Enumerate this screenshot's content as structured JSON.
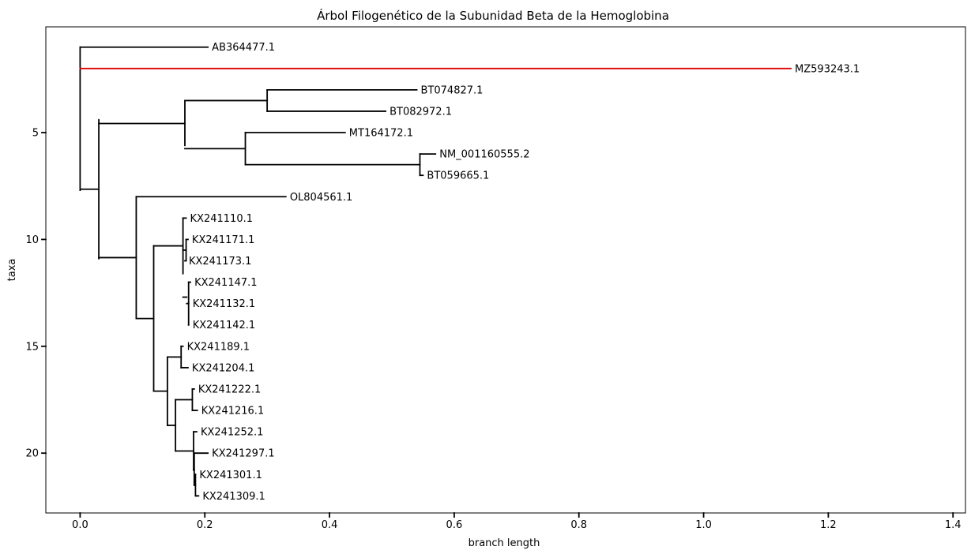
{
  "chart_data": {
    "type": "dendrogram",
    "title": "Árbol Filogenético de la Subunidad Beta de la Hemoglobina",
    "xlabel": "branch length",
    "ylabel": "taxa",
    "xlim": [
      -0.055,
      1.42
    ],
    "ylim": [
      22.8,
      0.05
    ],
    "xticks": [
      0.0,
      0.2,
      0.4,
      0.6,
      0.8,
      1.0,
      1.2,
      1.4
    ],
    "xtick_labels": [
      "0.0",
      "0.2",
      "0.4",
      "0.6",
      "0.8",
      "1.0",
      "1.2",
      "1.4"
    ],
    "yticks": [
      5,
      10,
      15,
      20
    ],
    "ytick_labels": [
      "5",
      "10",
      "15",
      "20"
    ],
    "grid": false,
    "highlight_color": "#e00000",
    "line_color": "#000000",
    "leaves": [
      {
        "label": "AB364477.1",
        "y": 1,
        "x": 0.205,
        "parent_x": 0.0
      },
      {
        "label": "MZ593243.1",
        "y": 2,
        "x": 1.14,
        "parent_x": 0.0,
        "highlight": true
      },
      {
        "label": "BT074827.1",
        "y": 3,
        "x": 0.54,
        "parent_x": 0.3
      },
      {
        "label": "BT082972.1",
        "y": 4,
        "x": 0.49,
        "parent_x": 0.3
      },
      {
        "label": "MT164172.1",
        "y": 5,
        "x": 0.425,
        "parent_x": 0.265
      },
      {
        "label": "NM_001160555.2",
        "y": 6,
        "x": 0.57,
        "parent_x": 0.545
      },
      {
        "label": "BT059665.1",
        "y": 7,
        "x": 0.55,
        "parent_x": 0.545
      },
      {
        "label": "OL804561.1",
        "y": 8,
        "x": 0.33,
        "parent_x": 0.09
      },
      {
        "label": "KX241110.1",
        "y": 9,
        "x": 0.17,
        "parent_x": 0.165
      },
      {
        "label": "KX241171.1",
        "y": 10,
        "x": 0.173,
        "parent_x": 0.17
      },
      {
        "label": "KX241173.1",
        "y": 11,
        "x": 0.168,
        "parent_x": 0.17
      },
      {
        "label": "KX241147.1",
        "y": 12,
        "x": 0.177,
        "parent_x": 0.174
      },
      {
        "label": "KX241132.1",
        "y": 13,
        "x": 0.174,
        "parent_x": 0.174
      },
      {
        "label": "KX241142.1",
        "y": 14,
        "x": 0.174,
        "parent_x": 0.174
      },
      {
        "label": "KX241189.1",
        "y": 15,
        "x": 0.165,
        "parent_x": 0.162
      },
      {
        "label": "KX241204.1",
        "y": 16,
        "x": 0.173,
        "parent_x": 0.162
      },
      {
        "label": "KX241222.1",
        "y": 17,
        "x": 0.183,
        "parent_x": 0.18
      },
      {
        "label": "KX241216.1",
        "y": 18,
        "x": 0.188,
        "parent_x": 0.18
      },
      {
        "label": "KX241252.1",
        "y": 19,
        "x": 0.187,
        "parent_x": 0.182
      },
      {
        "label": "KX241297.1",
        "y": 20,
        "x": 0.205,
        "parent_x": 0.183
      },
      {
        "label": "KX241301.1",
        "y": 21,
        "x": 0.185,
        "parent_x": 0.185
      },
      {
        "label": "KX241309.1",
        "y": 22,
        "x": 0.19,
        "parent_x": 0.187
      }
    ],
    "internal_nodes": [
      {
        "x": 0.0,
        "y_min": 1,
        "y_max": 7.7,
        "parent_x": null
      },
      {
        "x": 0.03,
        "y_min": 4.4,
        "y_max": 10.9,
        "parent_x": 0.0
      },
      {
        "x": 0.168,
        "y_min": 3.55,
        "y_max": 5.6,
        "parent_x": 0.03
      },
      {
        "x": 0.3,
        "y_min": 3,
        "y_max": 4,
        "parent_x": 0.168
      },
      {
        "x": 0.265,
        "y_min": 5,
        "y_max": 6.5,
        "parent_x": 0.168
      },
      {
        "x": 0.545,
        "y_min": 6,
        "y_max": 7,
        "parent_x": 0.265
      },
      {
        "x": 0.09,
        "y_min": 8,
        "y_max": 13.7,
        "parent_x": 0.03
      },
      {
        "x": 0.118,
        "y_min": 10.3,
        "y_max": 17.1,
        "parent_x": 0.09
      },
      {
        "x": 0.165,
        "y_min": 9,
        "y_max": 11.6,
        "parent_x": 0.118
      },
      {
        "x": 0.17,
        "y_min": 10,
        "y_max": 11,
        "parent_x": 0.165
      },
      {
        "x": 0.171,
        "y_min": 12.7,
        "y_max": 12.7,
        "parent_x": 0.165
      },
      {
        "x": 0.174,
        "y_min": 12,
        "y_max": 14,
        "parent_x": 0.171
      },
      {
        "x": 0.14,
        "y_min": 15.5,
        "y_max": 18.7,
        "parent_x": 0.118
      },
      {
        "x": 0.162,
        "y_min": 15,
        "y_max": 16,
        "parent_x": 0.14
      },
      {
        "x": 0.153,
        "y_min": 17.5,
        "y_max": 19.9,
        "parent_x": 0.14
      },
      {
        "x": 0.18,
        "y_min": 17,
        "y_max": 18,
        "parent_x": 0.153
      },
      {
        "x": 0.182,
        "y_min": 19,
        "y_max": 20.8,
        "parent_x": 0.153
      },
      {
        "x": 0.183,
        "y_min": 20,
        "y_max": 21.5,
        "parent_x": 0.182
      },
      {
        "x": 0.185,
        "y_min": 21,
        "y_max": 22,
        "parent_x": 0.183
      },
      {
        "x": 0.187,
        "y_min": 22,
        "y_max": 22,
        "parent_x": 0.185
      }
    ]
  }
}
